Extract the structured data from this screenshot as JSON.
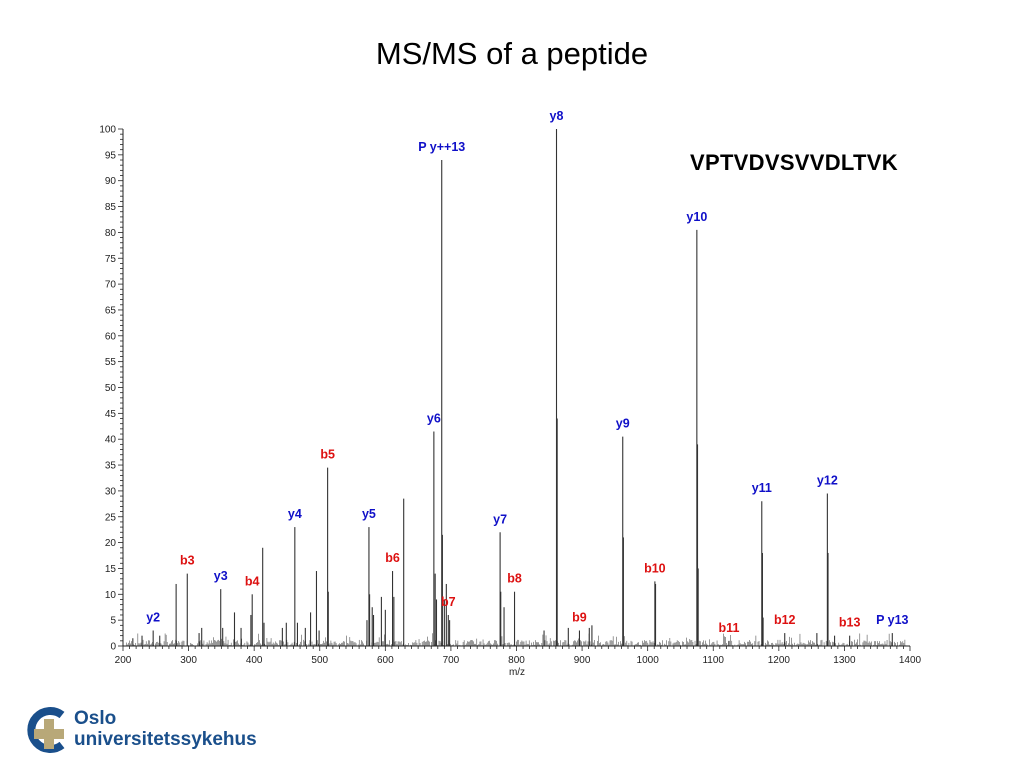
{
  "slide": {
    "title": "MS/MS of a peptide",
    "sequence": "VPTVDVSVVDLTVK",
    "logo": {
      "line1": "Oslo",
      "line2": "universitetssykehus",
      "colors": {
        "ring": "#1a4f8b",
        "cross": "#b8a878"
      }
    }
  },
  "chart_data": {
    "type": "bar",
    "title": "",
    "xlabel": "m/z",
    "ylabel": "",
    "xlim": [
      200,
      1400
    ],
    "ylim": [
      0,
      100
    ],
    "x_ticks": [
      200,
      300,
      400,
      500,
      600,
      700,
      800,
      900,
      1000,
      1100,
      1200,
      1300,
      1400
    ],
    "y_ticks": [
      0,
      5,
      10,
      15,
      20,
      25,
      30,
      35,
      40,
      45,
      50,
      55,
      60,
      65,
      70,
      75,
      80,
      85,
      90,
      95,
      100
    ],
    "grid": false,
    "colors": {
      "y_ion": "#1010c8",
      "b_ion": "#dd1111",
      "peak": "#333333"
    },
    "annotated_peaks": [
      {
        "label": "y2",
        "type": "y",
        "mz": 246,
        "intensity": 3
      },
      {
        "label": "b3",
        "type": "b",
        "mz": 298,
        "intensity": 14
      },
      {
        "label": "y3",
        "type": "y",
        "mz": 349,
        "intensity": 11
      },
      {
        "label": "b4",
        "type": "b",
        "mz": 397,
        "intensity": 10
      },
      {
        "label": "y4",
        "type": "y",
        "mz": 462,
        "intensity": 23
      },
      {
        "label": "b5",
        "type": "b",
        "mz": 512,
        "intensity": 34.5
      },
      {
        "label": "y5",
        "type": "y",
        "mz": 575,
        "intensity": 23
      },
      {
        "label": "b6",
        "type": "b",
        "mz": 611,
        "intensity": 14.5
      },
      {
        "label": "y6",
        "type": "y",
        "mz": 674,
        "intensity": 41.5
      },
      {
        "label": "P y++13",
        "type": "y",
        "mz": 686,
        "intensity": 94
      },
      {
        "label": "b7",
        "type": "b",
        "mz": 696,
        "intensity": 6
      },
      {
        "label": "y7",
        "type": "y",
        "mz": 775,
        "intensity": 22
      },
      {
        "label": "b8",
        "type": "b",
        "mz": 797,
        "intensity": 10.5
      },
      {
        "label": "y8",
        "type": "y",
        "mz": 861,
        "intensity": 100
      },
      {
        "label": "b9",
        "type": "b",
        "mz": 896,
        "intensity": 3
      },
      {
        "label": "y9",
        "type": "y",
        "mz": 962,
        "intensity": 40.5
      },
      {
        "label": "b10",
        "type": "b",
        "mz": 1011,
        "intensity": 12.5
      },
      {
        "label": "y10",
        "type": "y",
        "mz": 1075,
        "intensity": 80.5
      },
      {
        "label": "b11",
        "type": "b",
        "mz": 1124,
        "intensity": 1
      },
      {
        "label": "y11",
        "type": "y",
        "mz": 1174,
        "intensity": 28
      },
      {
        "label": "b12",
        "type": "b",
        "mz": 1209,
        "intensity": 2.5
      },
      {
        "label": "y12",
        "type": "y",
        "mz": 1274,
        "intensity": 29.5
      },
      {
        "label": "b13",
        "type": "b",
        "mz": 1308,
        "intensity": 2
      },
      {
        "label": "P y13",
        "type": "y",
        "mz": 1373,
        "intensity": 2.5
      }
    ],
    "other_peaks": [
      {
        "mz": 215,
        "intensity": 1.5
      },
      {
        "mz": 229,
        "intensity": 2
      },
      {
        "mz": 256,
        "intensity": 2
      },
      {
        "mz": 281,
        "intensity": 12
      },
      {
        "mz": 316,
        "intensity": 2.5
      },
      {
        "mz": 320,
        "intensity": 3.5
      },
      {
        "mz": 352,
        "intensity": 3.5
      },
      {
        "mz": 370,
        "intensity": 6.5
      },
      {
        "mz": 380,
        "intensity": 3.5
      },
      {
        "mz": 395,
        "intensity": 6
      },
      {
        "mz": 413,
        "intensity": 19
      },
      {
        "mz": 415,
        "intensity": 4.5
      },
      {
        "mz": 443,
        "intensity": 3.5
      },
      {
        "mz": 449,
        "intensity": 4.5
      },
      {
        "mz": 466,
        "intensity": 4.5
      },
      {
        "mz": 478,
        "intensity": 3.5
      },
      {
        "mz": 486,
        "intensity": 6.5
      },
      {
        "mz": 495,
        "intensity": 14.5
      },
      {
        "mz": 499,
        "intensity": 3
      },
      {
        "mz": 513,
        "intensity": 10.5
      },
      {
        "mz": 572,
        "intensity": 5
      },
      {
        "mz": 576,
        "intensity": 10
      },
      {
        "mz": 580,
        "intensity": 7.5
      },
      {
        "mz": 582,
        "intensity": 6
      },
      {
        "mz": 594,
        "intensity": 9.5
      },
      {
        "mz": 600,
        "intensity": 7
      },
      {
        "mz": 613,
        "intensity": 9.5
      },
      {
        "mz": 628,
        "intensity": 28.5
      },
      {
        "mz": 676,
        "intensity": 14
      },
      {
        "mz": 678,
        "intensity": 9
      },
      {
        "mz": 687,
        "intensity": 21.5
      },
      {
        "mz": 690,
        "intensity": 9
      },
      {
        "mz": 693,
        "intensity": 12
      },
      {
        "mz": 698,
        "intensity": 5
      },
      {
        "mz": 776,
        "intensity": 10.5
      },
      {
        "mz": 781,
        "intensity": 7.5
      },
      {
        "mz": 842,
        "intensity": 3
      },
      {
        "mz": 862,
        "intensity": 44
      },
      {
        "mz": 879,
        "intensity": 3.5
      },
      {
        "mz": 911,
        "intensity": 3.5
      },
      {
        "mz": 915,
        "intensity": 4
      },
      {
        "mz": 963,
        "intensity": 21
      },
      {
        "mz": 1012,
        "intensity": 12
      },
      {
        "mz": 1076,
        "intensity": 39
      },
      {
        "mz": 1077,
        "intensity": 15
      },
      {
        "mz": 1175,
        "intensity": 18
      },
      {
        "mz": 1176,
        "intensity": 5.5
      },
      {
        "mz": 1258,
        "intensity": 2.5
      },
      {
        "mz": 1275,
        "intensity": 18
      },
      {
        "mz": 1285,
        "intensity": 2
      }
    ]
  }
}
